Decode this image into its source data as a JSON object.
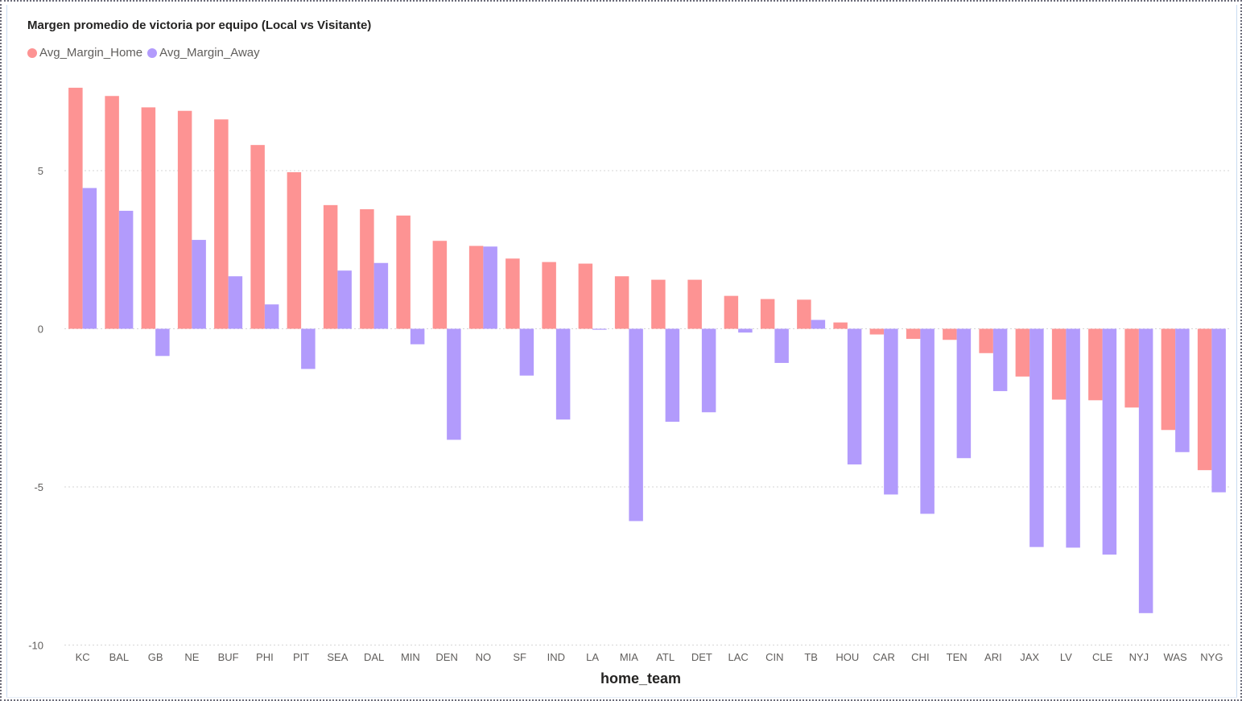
{
  "chart_data": {
    "type": "bar",
    "title": "Margen promedio de victoria por equipo (Local vs Visitante)",
    "xlabel": "home_team",
    "ylabel": "",
    "ylim": [
      -10,
      7.8
    ],
    "yticks": [
      5,
      0,
      -5,
      -10
    ],
    "yticks_labels": [
      "5",
      "0",
      "-5",
      "-10"
    ],
    "grid": true,
    "legend_position": "top-left",
    "categories": [
      "KC",
      "BAL",
      "GB",
      "NE",
      "BUF",
      "PHI",
      "PIT",
      "SEA",
      "DAL",
      "MIN",
      "DEN",
      "NO",
      "SF",
      "IND",
      "LA",
      "MIA",
      "ATL",
      "DET",
      "LAC",
      "CIN",
      "TB",
      "HOU",
      "CAR",
      "CHI",
      "TEN",
      "ARI",
      "JAX",
      "LV",
      "CLE",
      "NYJ",
      "WAS",
      "NYG"
    ],
    "series": [
      {
        "name": "Avg_Margin_Home",
        "color": "#fd9393",
        "values": [
          7.62,
          7.36,
          7.0,
          6.89,
          6.62,
          5.81,
          4.95,
          3.91,
          3.78,
          3.58,
          2.78,
          2.62,
          2.22,
          2.11,
          2.06,
          1.66,
          1.55,
          1.55,
          1.04,
          0.94,
          0.92,
          0.2,
          -0.18,
          -0.32,
          -0.35,
          -0.77,
          -1.51,
          -2.24,
          -2.26,
          -2.49,
          -3.2,
          -4.47
        ]
      },
      {
        "name": "Avg_Margin_Away",
        "color": "#b29bfc",
        "values": [
          4.45,
          3.73,
          -0.86,
          2.81,
          1.66,
          0.77,
          -1.27,
          1.84,
          2.08,
          -0.49,
          -3.51,
          2.6,
          -1.48,
          -2.87,
          -0.03,
          -6.08,
          -2.94,
          -2.64,
          -0.12,
          -1.08,
          0.28,
          -4.29,
          -5.24,
          -5.85,
          -4.09,
          -1.97,
          -6.9,
          -6.92,
          -7.14,
          -8.99,
          -3.9,
          -5.17
        ]
      }
    ]
  },
  "colors": {
    "tick_text": "#605e5c",
    "grid": "#d6d6d6",
    "axis_title": "#252423"
  }
}
